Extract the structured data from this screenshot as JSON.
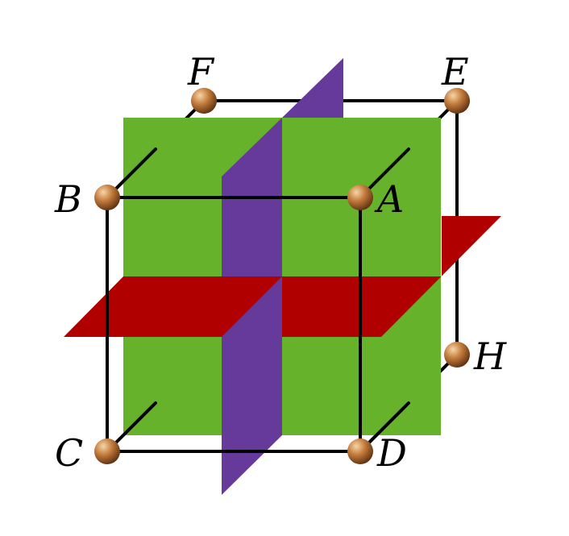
{
  "vertices": [
    {
      "id": "A",
      "label": "A"
    },
    {
      "id": "B",
      "label": "B"
    },
    {
      "id": "C",
      "label": "C"
    },
    {
      "id": "D",
      "label": "D"
    },
    {
      "id": "E",
      "label": "E"
    },
    {
      "id": "F",
      "label": "F"
    },
    {
      "id": "H",
      "label": "H"
    }
  ],
  "colors": {
    "green_plane": "#66b32b",
    "purple_plane": "#663a9a",
    "red_plane": "#b00000",
    "edge": "#000000",
    "atom_base": "#a8642a",
    "atom_highlight": "#f6d6a8",
    "atom_shadow": "#5a2e10"
  }
}
